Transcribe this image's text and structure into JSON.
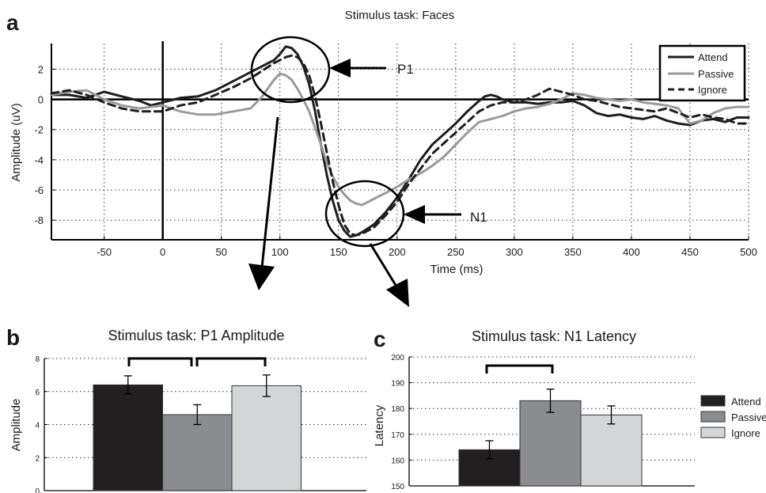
{
  "panel_letters": {
    "a": "a",
    "b": "b",
    "c": "c"
  },
  "colors": {
    "attend": "#1e1e1e",
    "passive": "#9a9a9a",
    "ignore": "#1e1e1e",
    "bar_attend": "#231f20",
    "bar_passive": "#8a8c8f",
    "bar_ignore": "#d4d5d6"
  },
  "annotations": {
    "p1": "P1",
    "n1": "N1"
  },
  "chart_data": [
    {
      "type": "line",
      "title": "Stimulus task: Faces",
      "xlabel": "Time (ms)",
      "ylabel": "Amplitude (uV)",
      "xlim": [
        -95,
        500
      ],
      "ylim": [
        -9.3,
        3.7
      ],
      "xticks": [
        -50,
        0,
        50,
        100,
        150,
        200,
        250,
        300,
        350,
        400,
        450,
        500
      ],
      "yticks": [
        2,
        0,
        -2,
        -4,
        -6,
        -8
      ],
      "grid": true,
      "legend_position": "top-right",
      "series": [
        {
          "name": "Attend",
          "style": "solid",
          "x": [
            -95,
            -80,
            -65,
            -50,
            -35,
            -20,
            -10,
            0,
            15,
            30,
            45,
            60,
            75,
            85,
            95,
            100,
            105,
            110,
            115,
            120,
            125,
            130,
            135,
            140,
            145,
            150,
            155,
            160,
            165,
            170,
            180,
            190,
            200,
            210,
            220,
            230,
            240,
            250,
            260,
            270,
            275,
            280,
            285,
            290,
            300,
            310,
            320,
            330,
            340,
            350,
            360,
            370,
            380,
            390,
            400,
            410,
            420,
            430,
            440,
            450,
            460,
            470,
            480,
            490,
            500
          ],
          "y": [
            0.3,
            0.3,
            0.1,
            0.5,
            0.2,
            -0.1,
            -0.4,
            -0.2,
            0.1,
            0.2,
            0.6,
            1.2,
            1.8,
            2.2,
            2.6,
            3.0,
            3.5,
            3.4,
            3.0,
            2.2,
            1.0,
            -0.8,
            -3.0,
            -5.0,
            -6.7,
            -8.0,
            -8.7,
            -9.1,
            -9.0,
            -8.8,
            -8.3,
            -7.5,
            -6.5,
            -5.3,
            -4.0,
            -3.0,
            -2.3,
            -1.6,
            -0.8,
            -0.1,
            0.2,
            0.3,
            0.2,
            0.0,
            -0.2,
            -0.2,
            -0.3,
            -0.2,
            -0.2,
            -0.1,
            -0.4,
            -0.9,
            -1.1,
            -1.0,
            -1.2,
            -1.3,
            -1.1,
            -1.4,
            -1.6,
            -1.7,
            -1.4,
            -1.3,
            -1.5,
            -1.2,
            -1.2
          ]
        },
        {
          "name": "Passive",
          "style": "solid",
          "x": [
            -95,
            -80,
            -65,
            -50,
            -35,
            -20,
            -10,
            0,
            15,
            30,
            45,
            60,
            75,
            85,
            95,
            100,
            105,
            110,
            115,
            120,
            125,
            130,
            135,
            140,
            145,
            150,
            155,
            160,
            165,
            170,
            180,
            190,
            200,
            210,
            220,
            230,
            240,
            250,
            260,
            270,
            280,
            290,
            300,
            310,
            320,
            330,
            340,
            350,
            360,
            370,
            380,
            390,
            400,
            410,
            420,
            430,
            440,
            450,
            460,
            470,
            480,
            490,
            500
          ],
          "y": [
            0.3,
            0.5,
            0.6,
            0.0,
            -0.4,
            -0.6,
            -0.5,
            -0.4,
            -0.8,
            -1.0,
            -1.0,
            -0.8,
            -0.6,
            0.2,
            1.3,
            1.7,
            1.6,
            1.3,
            0.7,
            0.0,
            -0.8,
            -1.9,
            -3.0,
            -4.2,
            -5.1,
            -5.8,
            -6.3,
            -6.7,
            -6.9,
            -7.0,
            -6.6,
            -6.2,
            -5.8,
            -5.3,
            -4.9,
            -4.4,
            -3.8,
            -3.0,
            -2.2,
            -1.5,
            -1.3,
            -1.1,
            -0.8,
            -0.6,
            -0.5,
            -0.3,
            0.0,
            0.4,
            0.3,
            0.1,
            0.0,
            -0.1,
            0.0,
            -0.2,
            -0.3,
            -0.4,
            -0.6,
            -1.6,
            -1.4,
            -0.9,
            -0.6,
            -0.5,
            -0.5
          ]
        },
        {
          "name": "Ignore",
          "style": "dashed",
          "x": [
            -95,
            -80,
            -65,
            -50,
            -35,
            -20,
            -10,
            0,
            15,
            30,
            45,
            60,
            75,
            85,
            95,
            100,
            105,
            110,
            115,
            120,
            125,
            130,
            135,
            140,
            145,
            150,
            155,
            160,
            165,
            170,
            180,
            190,
            200,
            210,
            220,
            230,
            240,
            250,
            260,
            270,
            280,
            290,
            300,
            310,
            320,
            330,
            340,
            350,
            360,
            370,
            380,
            390,
            400,
            410,
            420,
            430,
            440,
            450,
            460,
            470,
            480,
            490,
            500
          ],
          "y": [
            0.4,
            0.6,
            0.3,
            -0.2,
            -0.6,
            -0.8,
            -0.8,
            -0.8,
            -0.4,
            -0.2,
            0.3,
            0.8,
            1.4,
            1.9,
            2.4,
            2.6,
            2.8,
            2.9,
            2.8,
            2.4,
            1.6,
            0.2,
            -1.6,
            -3.5,
            -5.4,
            -7.0,
            -8.3,
            -8.9,
            -9.0,
            -8.9,
            -8.5,
            -7.7,
            -6.8,
            -5.6,
            -4.6,
            -3.6,
            -2.9,
            -2.2,
            -1.5,
            -0.8,
            -0.4,
            -0.2,
            -0.2,
            0.0,
            0.3,
            0.7,
            0.5,
            0.3,
            0.0,
            -0.1,
            -0.3,
            -0.5,
            -0.6,
            -0.7,
            -0.8,
            -0.6,
            -0.9,
            -1.2,
            -1.0,
            -1.2,
            -1.3,
            -1.6,
            -1.6
          ]
        }
      ]
    },
    {
      "type": "bar",
      "title": "Stimulus task: P1 Amplitude",
      "ylabel": "Amplitude",
      "ylim": [
        0,
        8
      ],
      "yticks": [
        0,
        2,
        4,
        6,
        8
      ],
      "grid": true,
      "categories": [
        "Attend",
        "Passive",
        "Ignore"
      ],
      "values": [
        6.4,
        4.6,
        6.35
      ],
      "errors": [
        0.55,
        0.6,
        0.65
      ],
      "significance_brackets": [
        [
          0,
          1
        ],
        [
          1,
          2
        ]
      ]
    },
    {
      "type": "bar",
      "title": "Stimulus task: N1 Latency",
      "ylabel": "Latency",
      "ylim": [
        150,
        200
      ],
      "yticks": [
        150,
        160,
        170,
        180,
        190,
        200
      ],
      "grid": true,
      "legend_position": "right",
      "categories": [
        "Attend",
        "Passive",
        "Ignore"
      ],
      "values": [
        164,
        183,
        177.5
      ],
      "errors": [
        3.5,
        4.5,
        3.5
      ],
      "significance_brackets": [
        [
          0,
          1
        ]
      ]
    }
  ]
}
